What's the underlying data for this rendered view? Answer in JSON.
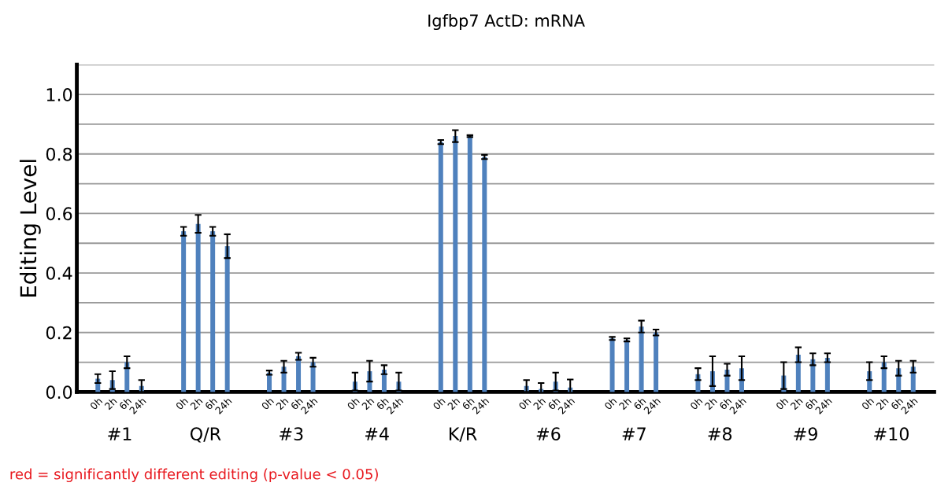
{
  "chart_data": {
    "type": "bar",
    "title": "Igfbp7 ActD: mRNA",
    "ylabel": "Editing Level",
    "categories": [
      "#1",
      "Q/R",
      "#3",
      "#4",
      "K/R",
      "#6",
      "#7",
      "#8",
      "#9",
      "#10"
    ],
    "series": [
      {
        "name": "0h",
        "color": "#4f81bd",
        "values": [
          0.045,
          0.54,
          0.065,
          0.035,
          0.84,
          0.02,
          0.18,
          0.06,
          0.055,
          0.07
        ],
        "errors": [
          0.015,
          0.015,
          0.007,
          0.03,
          0.007,
          0.02,
          0.005,
          0.02,
          0.045,
          0.03
        ]
      },
      {
        "name": "2h",
        "color": "#4f81bd",
        "values": [
          0.04,
          0.565,
          0.085,
          0.07,
          0.86,
          0.01,
          0.175,
          0.07,
          0.125,
          0.1
        ],
        "errors": [
          0.03,
          0.03,
          0.02,
          0.035,
          0.02,
          0.02,
          0.005,
          0.05,
          0.025,
          0.02
        ]
      },
      {
        "name": "6h",
        "color": "#4f81bd",
        "values": [
          0.1,
          0.54,
          0.12,
          0.075,
          0.86,
          0.035,
          0.22,
          0.075,
          0.11,
          0.08
        ],
        "errors": [
          0.02,
          0.015,
          0.012,
          0.015,
          0.003,
          0.03,
          0.02,
          0.02,
          0.02,
          0.025
        ]
      },
      {
        "name": "24h",
        "color": "#4f81bd",
        "values": [
          0.02,
          0.49,
          0.1,
          0.035,
          0.79,
          0.015,
          0.2,
          0.08,
          0.115,
          0.085
        ],
        "errors": [
          0.02,
          0.04,
          0.015,
          0.03,
          0.007,
          0.027,
          0.01,
          0.04,
          0.015,
          0.02
        ]
      }
    ],
    "ylim": [
      0,
      1.1
    ],
    "yticks": [
      {
        "value": 0,
        "label": "0.0"
      },
      {
        "value": 0.1,
        "label": null
      },
      {
        "value": 0.2,
        "label": "0.2"
      },
      {
        "value": 0.3,
        "label": null
      },
      {
        "value": 0.4,
        "label": "0.4"
      },
      {
        "value": 0.5,
        "label": null
      },
      {
        "value": 0.6,
        "label": "0.6"
      },
      {
        "value": 0.7,
        "label": null
      },
      {
        "value": 0.8,
        "label": "0.8"
      },
      {
        "value": 0.9,
        "label": null
      },
      {
        "value": 1.0,
        "label": "1.0"
      },
      {
        "value": 1.1,
        "label": null
      }
    ],
    "grid": "y",
    "annotations": [
      "red = significantly different editing (p-value < 0.05)"
    ]
  }
}
